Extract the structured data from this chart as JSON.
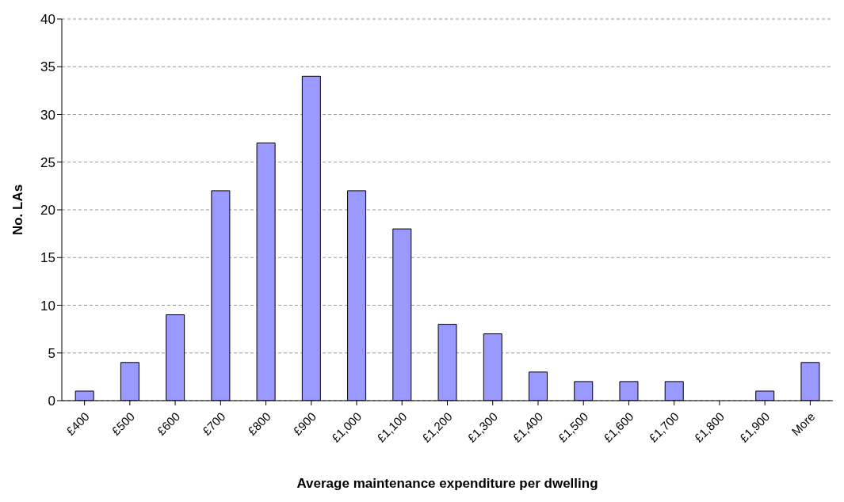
{
  "chart_data": {
    "type": "bar",
    "xlabel": "Average maintenance expenditure per dwelling",
    "ylabel": "No. LAs",
    "categories": [
      "£400",
      "£500",
      "£600",
      "£700",
      "£800",
      "£900",
      "£1,000",
      "£1,100",
      "£1,200",
      "£1,300",
      "£1,400",
      "£1,500",
      "£1,600",
      "£1,700",
      "£1,800",
      "£1,900",
      "More"
    ],
    "values": [
      1,
      4,
      9,
      22,
      27,
      34,
      22,
      18,
      8,
      7,
      3,
      2,
      2,
      2,
      0,
      1,
      4
    ],
    "color": "#9999ff",
    "ylim": [
      0,
      40
    ],
    "yticks": [
      0,
      5,
      10,
      15,
      20,
      25,
      30,
      35,
      40
    ],
    "grid": "y"
  }
}
